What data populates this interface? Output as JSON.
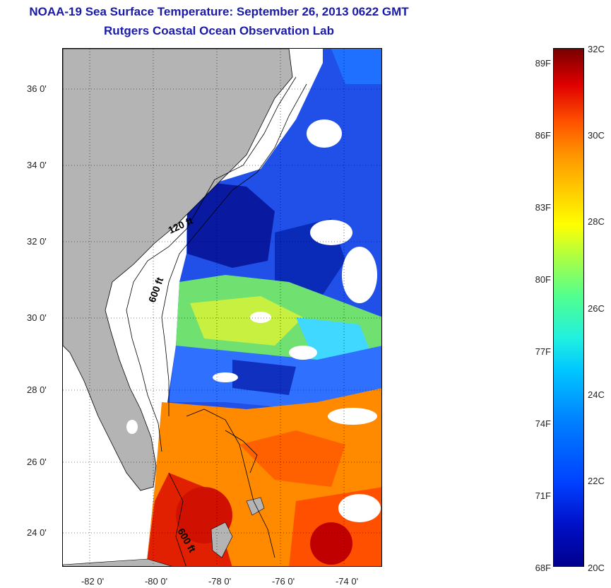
{
  "title": {
    "line1": "NOAA-19 Sea Surface Temperature:  September 26, 2013 0622 GMT",
    "line2": "Rutgers Coastal Ocean Observation Lab"
  },
  "map": {
    "y_axis_labels": [
      "36 0'",
      "34 0'",
      "32 0'",
      "30 0'",
      "28 0'",
      "26 0'",
      "24 0'"
    ],
    "x_axis_labels": [
      "-82 0'",
      "-80 0'",
      "-78 0'",
      "-76 0'",
      "-74 0'"
    ],
    "contour_labels": [
      "120 ft",
      "600 ft",
      "600 ft"
    ],
    "colors": {
      "land": "#b4b4b4",
      "cloud": "#ffffff",
      "grid": "#000000"
    }
  },
  "colorbar": {
    "fahrenheit_labels": [
      "89F",
      "86F",
      "83F",
      "80F",
      "77F",
      "74F",
      "71F",
      "68F"
    ],
    "celsius_labels": [
      "32C",
      "30C",
      "28C",
      "26C",
      "24C",
      "22C",
      "20C"
    ],
    "range_c": [
      20,
      32
    ],
    "colors": [
      "#00008c",
      "#0040ff",
      "#00c8ff",
      "#50ff90",
      "#ffff00",
      "#ff9000",
      "#e00000",
      "#780000"
    ]
  }
}
